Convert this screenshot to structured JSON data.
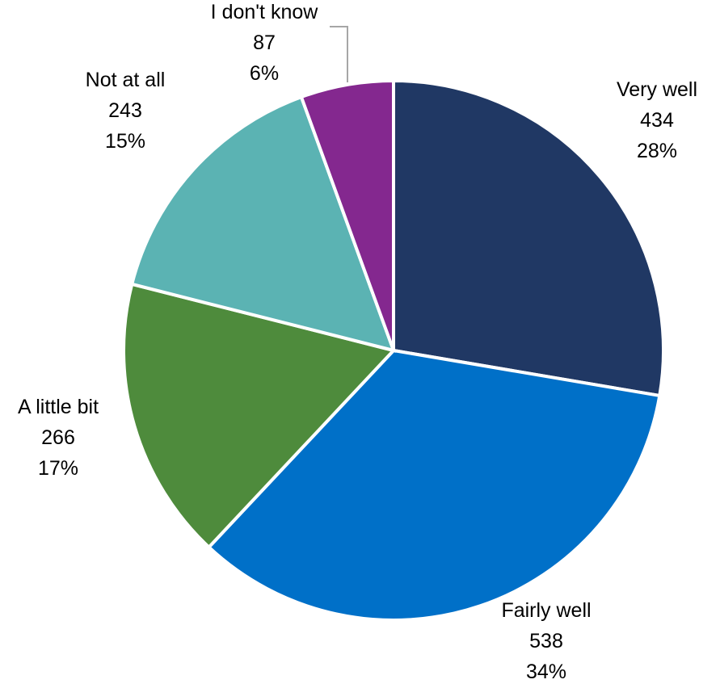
{
  "chart_data": {
    "type": "pie",
    "title": "",
    "legend": "none",
    "start_angle_deg": 0,
    "direction": "clockwise",
    "slices": [
      {
        "label": "Very well",
        "value": 434,
        "percent": "28%",
        "color": "#203864"
      },
      {
        "label": "Fairly well",
        "value": 538,
        "percent": "34%",
        "color": "#0070C8"
      },
      {
        "label": "A little bit",
        "value": 266,
        "percent": "17%",
        "color": "#4E8B3C"
      },
      {
        "label": "Not at all",
        "value": 243,
        "percent": "15%",
        "color": "#5BB3B3"
      },
      {
        "label": "I don't know",
        "value": 87,
        "percent": "6%",
        "color": "#84288F"
      }
    ]
  }
}
